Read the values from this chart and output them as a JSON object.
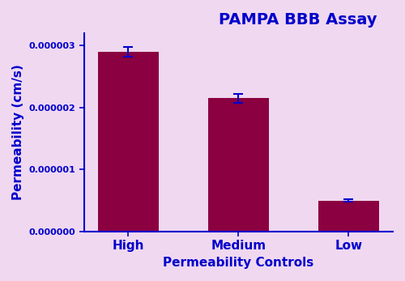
{
  "categories": [
    "High",
    "Medium",
    "Low"
  ],
  "values": [
    2.9e-06,
    2.15e-06,
    5e-07
  ],
  "errors": [
    8e-08,
    7e-08,
    2e-08
  ],
  "bar_color": "#8B0040",
  "error_color": "#0000CC",
  "background_color": "#F0D8F0",
  "axis_color": "#0000CC",
  "label_color": "#0000CC",
  "title": "PAMPA BBB Assay",
  "title_fontsize": 14,
  "xlabel": "Permeability Controls",
  "ylabel": "Permeability (cm/s)",
  "label_fontsize": 11,
  "tick_fontsize": 8,
  "ylim": [
    0,
    3.2e-06
  ],
  "yticks": [
    0.0,
    1e-06,
    2e-06,
    3e-06
  ],
  "ytick_labels": [
    "0.000000",
    "0.000001",
    "0.000002",
    "0.000003"
  ]
}
